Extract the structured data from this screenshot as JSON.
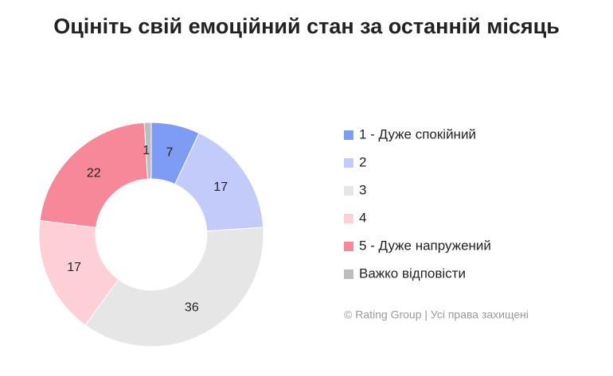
{
  "chart_data": {
    "type": "donut",
    "title": "Оцініть свій емоційний стан за останній місяць",
    "categories": [
      "1 - Дуже спокійний",
      "2",
      "3",
      "4",
      "5 - Дуже напружений",
      "Важко відповісти"
    ],
    "values": [
      7,
      17,
      36,
      17,
      22,
      1
    ],
    "colors": [
      "#7f9cf5",
      "#c3cbfb",
      "#e6e6e6",
      "#fdd0d6",
      "#f7889a",
      "#bdbdbd"
    ],
    "legend": "right",
    "note": "© Rating Group | Усі права захищені"
  }
}
